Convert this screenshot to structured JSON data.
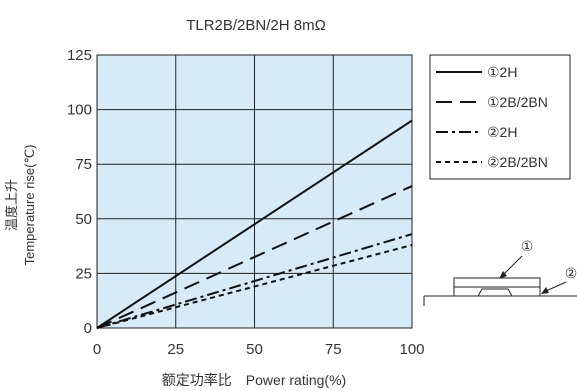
{
  "chart_data": {
    "type": "line",
    "title": "TLR2B/2BN/2H 8mΩ",
    "xlabel": "额定功率比　Power rating(%)",
    "ylabel_cn": "温度上升",
    "ylabel": "Temperature rise(℃)",
    "xlim": [
      0,
      100
    ],
    "ylim": [
      0,
      125
    ],
    "xticks": [
      "0",
      "25",
      "50",
      "75",
      "100"
    ],
    "yticks": [
      "0",
      "25",
      "50",
      "75",
      "100",
      "125"
    ],
    "grid": true,
    "plot_background": "#d6ebf7",
    "legend_position": "right",
    "x": [
      0,
      100
    ],
    "series": [
      {
        "name": "①2H",
        "values": [
          0,
          95
        ],
        "dash": "solid"
      },
      {
        "name": "①2B/2BN",
        "values": [
          0,
          65
        ],
        "dash": "long-dash"
      },
      {
        "name": "②2H",
        "values": [
          0,
          43
        ],
        "dash": "dash-dot"
      },
      {
        "name": "②2B/2BN",
        "values": [
          0,
          38
        ],
        "dash": "short-dash"
      }
    ],
    "annotations": {
      "label_1": "①",
      "label_2": "②"
    }
  }
}
